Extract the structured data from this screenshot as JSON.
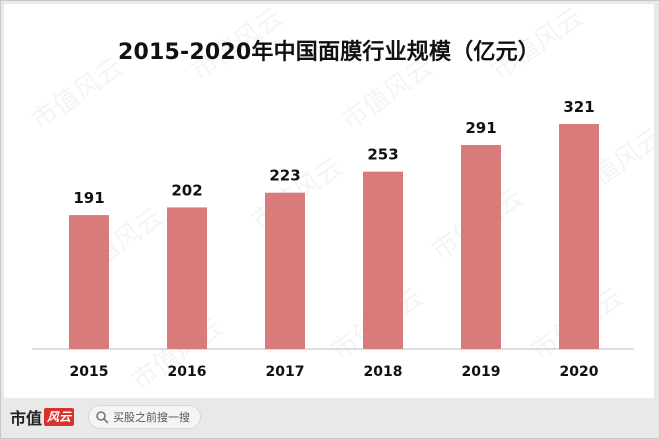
{
  "chart_data": {
    "type": "bar",
    "title": "2015-2020年中国面膜行业规模（亿元）",
    "categories": [
      "2015",
      "2016",
      "2017",
      "2018",
      "2019",
      "2020"
    ],
    "values": [
      191,
      202,
      223,
      253,
      291,
      321
    ],
    "ylim": [
      0,
      321
    ],
    "grid": false,
    "legend": "none",
    "bar_color": "#d97b7b"
  },
  "watermark": {
    "text": "市值风云"
  },
  "footer": {
    "brand": "市值",
    "brand_seal": "风云",
    "search_text": "买股之前搜一搜"
  },
  "colors": {
    "bar": "#d97b7b",
    "axis": "#bfbfbf",
    "text": "#111111"
  }
}
